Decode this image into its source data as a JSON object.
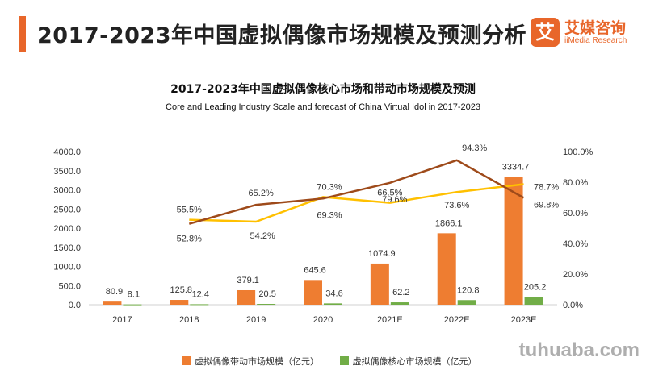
{
  "header": {
    "title": "2017-2023年中国虚拟偶像市场规模及预测分析",
    "logo_mark": "艾",
    "logo_cn": "艾媒咨询",
    "logo_en": "iiMedia Research"
  },
  "colors": {
    "accent": "#e8662a",
    "bar_drive": "#ee7d31",
    "bar_core": "#71ad47",
    "line_drive_growth": "#ffc000",
    "line_core_growth": "#9e4a1a"
  },
  "watermark": "tuhuaba.com",
  "chart_data": {
    "type": "bar",
    "title": "2017-2023年中国虚拟偶像核心市场和带动市场规模及预测",
    "subtitle": "Core and Leading Industry Scale and forecast of China Virtual Idol in 2017-2023",
    "categories": [
      "2017",
      "2018",
      "2019",
      "2020",
      "2021E",
      "2022E",
      "2023E"
    ],
    "ylim": [
      0,
      4000
    ],
    "yticks": [
      "0.0",
      "500.0",
      "1000.0",
      "1500.0",
      "2000.0",
      "2500.0",
      "3000.0",
      "3500.0",
      "4000.0"
    ],
    "y2lim": [
      0,
      100
    ],
    "y2ticks": [
      "0.0%",
      "20.0%",
      "40.0%",
      "60.0%",
      "80.0%",
      "100.0%"
    ],
    "series": [
      {
        "name": "虚拟偶像带动市场规模（亿元）",
        "kind": "bar",
        "values": [
          80.9,
          125.8,
          379.1,
          645.6,
          1074.9,
          1866.1,
          3334.7
        ],
        "labels": [
          "80.9",
          "125.8",
          "379.1",
          "645.6",
          "1074.9",
          "1866.1",
          "3334.7"
        ]
      },
      {
        "name": "虚拟偶像核心市场规模（亿元）",
        "kind": "bar",
        "values": [
          8.1,
          12.4,
          20.5,
          34.6,
          62.2,
          120.8,
          205.2
        ],
        "labels": [
          "8.1",
          "12.4",
          "20.5",
          "34.6",
          "62.2",
          "120.8",
          "205.2"
        ]
      },
      {
        "kind": "line",
        "axis": "right",
        "values": [
          null,
          55.5,
          54.2,
          70.3,
          66.5,
          73.6,
          78.7
        ],
        "labels": [
          "",
          "55.5%",
          "54.2%",
          "70.3%",
          "66.5%",
          "73.6%",
          "78.7%"
        ]
      },
      {
        "kind": "line",
        "axis": "right",
        "values": [
          null,
          52.8,
          65.2,
          69.3,
          79.6,
          94.3,
          69.8
        ],
        "labels": [
          "",
          "52.8%",
          "65.2%",
          "69.3%",
          "79.6%",
          "94.3%",
          "69.8%"
        ]
      }
    ],
    "legend": "bottom"
  }
}
